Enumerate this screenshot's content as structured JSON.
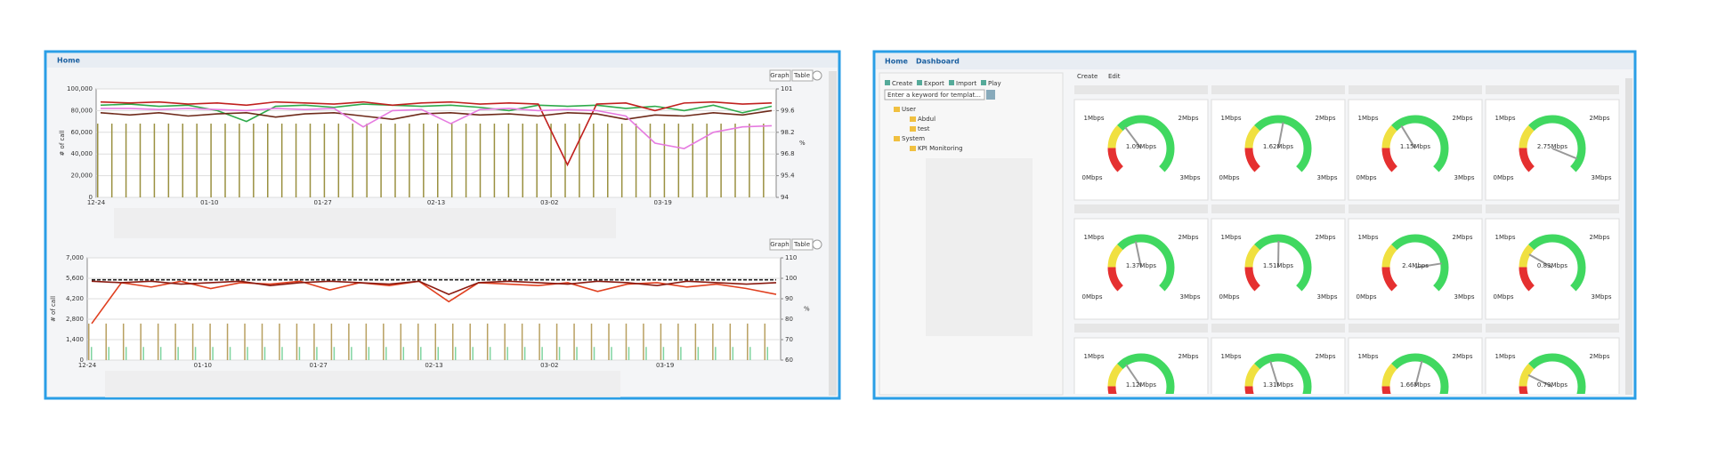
{
  "left_panel": {
    "tab": "Home",
    "buttons": [
      "Graph",
      "Table"
    ],
    "charts": [
      {
        "y_label": "# of call",
        "y2_label": "%",
        "ylim": [
          0,
          100000
        ],
        "y2lim": [
          94,
          101
        ],
        "yticks": [
          0,
          {
            "value": 20000,
            "label": "20,000"
          },
          {
            "value": 40000,
            "label": "40,000"
          },
          {
            "value": 60000,
            "label": "60,000"
          },
          {
            "value": 80000,
            "label": "80,000"
          },
          {
            "value": 100000,
            "label": "100,000"
          }
        ],
        "y2ticks": [
          94,
          95.4,
          96.8,
          98.2,
          99.6,
          101
        ],
        "xticks": [
          "12-24",
          "01-10",
          "01-27",
          "02-13",
          "03-02",
          "03-19"
        ],
        "bars": [
          {
            "color": "#9a9040",
            "values": [
              68000,
              68000,
              68000,
              68000,
              68000,
              68000,
              68000,
              68000,
              68000,
              68000,
              68000,
              68000,
              68000,
              68000,
              68000,
              68000,
              68000,
              68000,
              68000,
              68000,
              68000,
              68000,
              68000,
              68000,
              68000,
              68000,
              68000,
              68000,
              68000,
              68000,
              68000,
              68000,
              68000,
              68000,
              68000,
              68000,
              68000,
              68000,
              68000,
              68000,
              68000,
              68000,
              68000,
              68000,
              68000,
              68000,
              68000,
              68000
            ]
          }
        ],
        "series": [
          {
            "color": "#2eaa4a",
            "values": [
              85000,
              86000,
              84000,
              85000,
              80000,
              70000,
              84000,
              85000,
              83000,
              86000,
              85000,
              84000,
              85000,
              83000,
              80000,
              85000,
              84000,
              85000,
              82000,
              84000,
              80000,
              85000,
              78000,
              84000
            ]
          },
          {
            "color": "#c0201e",
            "values": [
              88000,
              87000,
              88000,
              86000,
              87000,
              85000,
              88000,
              87000,
              86000,
              88000,
              85000,
              87000,
              88000,
              86000,
              87000,
              86000,
              30000,
              86000,
              87000,
              80000,
              87000,
              88000,
              86000,
              87000
            ]
          },
          {
            "color": "#6e2a1a",
            "values": [
              78000,
              76000,
              78000,
              75000,
              77000,
              78000,
              74000,
              77000,
              78000,
              75000,
              72000,
              77000,
              78000,
              76000,
              77000,
              75000,
              78000,
              77000,
              72000,
              76000,
              75000,
              78000,
              76000,
              80000
            ]
          },
          {
            "color": "#e67be0",
            "values": [
              82000,
              82000,
              81000,
              82000,
              81000,
              80000,
              82000,
              81000,
              82000,
              65000,
              80000,
              81000,
              68000,
              81000,
              82000,
              80000,
              81000,
              80000,
              75000,
              50000,
              45000,
              60000,
              65000,
              66000
            ]
          }
        ]
      },
      {
        "y_label": "# of call",
        "y2_label": "%",
        "ylim": [
          0,
          7000
        ],
        "y2lim": [
          60,
          110
        ],
        "yticks": [
          0,
          {
            "value": 1400,
            "label": "1,400"
          },
          {
            "value": 2800,
            "label": "2,800"
          },
          {
            "value": 4200,
            "label": "4,200"
          },
          {
            "value": 5600,
            "label": "5,600"
          },
          {
            "value": 7000,
            "label": "7,000"
          }
        ],
        "y2ticks": [
          60,
          70,
          80,
          90,
          100,
          110
        ],
        "xticks": [
          "12-24",
          "01-10",
          "01-27",
          "02-13",
          "03-02",
          "03-19"
        ],
        "bars": [
          {
            "color": "#b8a060",
            "values": [
              2500,
              2500,
              2500,
              2500,
              2500,
              2500,
              2500,
              2500,
              2500,
              2500,
              2500,
              2500,
              2500,
              2500,
              2500,
              2500,
              2500,
              2500,
              2500,
              2500,
              2500,
              2500,
              2500,
              2500,
              2500,
              2500,
              2500,
              2500,
              2500,
              2500,
              2500,
              2500,
              2500,
              2500,
              2500,
              2500,
              2500,
              2500,
              2500,
              2500
            ]
          },
          {
            "color": "#7fd4a0",
            "values": [
              900,
              900,
              900,
              900,
              900,
              900,
              900,
              900,
              900,
              900,
              900,
              900,
              900,
              900,
              900,
              900,
              900,
              900,
              900,
              900,
              900,
              900,
              900,
              900,
              900,
              900,
              900,
              900,
              900,
              900,
              900,
              900,
              900,
              900,
              900,
              900,
              900,
              900,
              900,
              900
            ]
          }
        ],
        "series": [
          {
            "color": "#222222",
            "values": [
              5500,
              5500,
              5500,
              5500,
              5500,
              5500,
              5500,
              5500,
              5500,
              5500,
              5500,
              5500,
              5500,
              5500,
              5500,
              5500,
              5500,
              5500,
              5500,
              5500,
              5500,
              5500,
              5500,
              5500
            ]
          },
          {
            "color": "#e04020",
            "values": [
              2500,
              5300,
              5000,
              5400,
              4900,
              5300,
              5200,
              5400,
              4800,
              5300,
              5100,
              5400,
              4000,
              5300,
              5200,
              5100,
              5300,
              4700,
              5200,
              5300,
              5000,
              5200,
              4900,
              4500
            ]
          },
          {
            "color": "#8a1a10",
            "values": [
              5400,
              5300,
              5400,
              5200,
              5300,
              5400,
              5100,
              5300,
              5400,
              5300,
              5200,
              5400,
              4500,
              5300,
              5400,
              5300,
              5200,
              5400,
              5300,
              5100,
              5400,
              5300,
              5200,
              5300
            ]
          }
        ]
      }
    ]
  },
  "right_panel": {
    "tabs": [
      "Home",
      "Dashboard"
    ],
    "toolbar": [
      "Create",
      "Export",
      "Import",
      "Play"
    ],
    "search_placeholder": "Enter a keyword for templat...",
    "tree": [
      {
        "label": "User",
        "children": [
          "Abdul",
          "test"
        ]
      },
      {
        "label": "System",
        "children": [
          "KPI Monitoring"
        ]
      }
    ],
    "gauge_toolbar": [
      "Create",
      "Edit"
    ],
    "gauge_ticks": [
      {
        "value": 0,
        "label": "0Mbps"
      },
      {
        "value": 1,
        "label": "1Mbps"
      },
      {
        "value": 2,
        "label": "2Mbps"
      },
      {
        "value": 3,
        "label": "3Mbps"
      }
    ],
    "gauges": [
      {
        "value": 1.09,
        "label": "1.09Mbps"
      },
      {
        "value": 1.62,
        "label": "1.62Mbps"
      },
      {
        "value": 1.15,
        "label": "1.15Mbps"
      },
      {
        "value": 2.75,
        "label": "2.75Mbps"
      },
      {
        "value": 1.37,
        "label": "1.37Mbps"
      },
      {
        "value": 1.51,
        "label": "1.51Mbps"
      },
      {
        "value": 2.4,
        "label": "2.4Mbps"
      },
      {
        "value": 0.83,
        "label": "0.83Mbps"
      },
      {
        "value": 1.12,
        "label": "1.12Mbps"
      },
      {
        "value": 1.31,
        "label": "1.31Mbps"
      },
      {
        "value": 1.66,
        "label": "1.66Mbps"
      },
      {
        "value": 0.79,
        "label": "0.79Mbps"
      }
    ]
  }
}
